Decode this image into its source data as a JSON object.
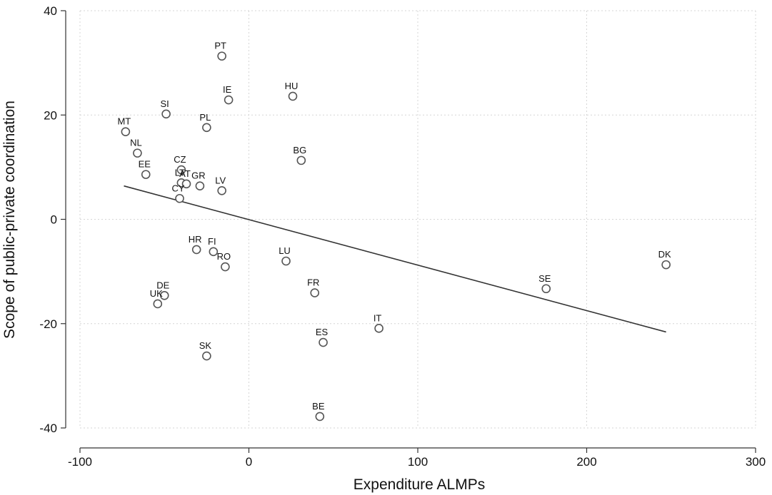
{
  "chart_data": {
    "type": "scatter",
    "xlabel": "Expenditure ALMPs",
    "ylabel": "Scope of public-private coordination",
    "xlim": [
      -100,
      300
    ],
    "ylim": [
      -40,
      40
    ],
    "xticks": [
      -100,
      0,
      100,
      200,
      300
    ],
    "yticks": [
      -40,
      -20,
      0,
      20,
      40
    ],
    "grid": true,
    "points": [
      {
        "label": "PT",
        "x": -16,
        "y": 31.3
      },
      {
        "label": "HU",
        "x": 26,
        "y": 23.6
      },
      {
        "label": "IE",
        "x": -12,
        "y": 22.9
      },
      {
        "label": "SI",
        "x": -49,
        "y": 20.2
      },
      {
        "label": "PL",
        "x": -25,
        "y": 17.6
      },
      {
        "label": "MT",
        "x": -73,
        "y": 16.8
      },
      {
        "label": "NL",
        "x": -66,
        "y": 12.7
      },
      {
        "label": "BG",
        "x": 31,
        "y": 11.3
      },
      {
        "label": "CZ",
        "x": -40,
        "y": 9.5
      },
      {
        "label": "EE",
        "x": -61,
        "y": 8.6
      },
      {
        "label": "LT",
        "x": -40,
        "y": 7.0
      },
      {
        "label": "AT",
        "x": -37,
        "y": 6.8
      },
      {
        "label": "GR",
        "x": -29,
        "y": 6.4
      },
      {
        "label": "LV",
        "x": -16,
        "y": 5.5
      },
      {
        "label": "CY",
        "x": -41,
        "y": 4.0
      },
      {
        "label": "HR",
        "x": -31,
        "y": -5.8
      },
      {
        "label": "FI",
        "x": -21,
        "y": -6.2
      },
      {
        "label": "RO",
        "x": -14,
        "y": -9.1
      },
      {
        "label": "LU",
        "x": 22,
        "y": -8.0
      },
      {
        "label": "DK",
        "x": 247,
        "y": -8.7
      },
      {
        "label": "SE",
        "x": 176,
        "y": -13.3
      },
      {
        "label": "FR",
        "x": 39,
        "y": -14.1
      },
      {
        "label": "DE",
        "x": -50,
        "y": -14.6
      },
      {
        "label": "UK",
        "x": -54,
        "y": -16.2
      },
      {
        "label": "IT",
        "x": 77,
        "y": -20.9
      },
      {
        "label": "ES",
        "x": 44,
        "y": -23.6
      },
      {
        "label": "SK",
        "x": -25,
        "y": -26.2
      },
      {
        "label": "BE",
        "x": 42,
        "y": -37.8
      }
    ],
    "fit_line": {
      "x": [
        -74,
        247
      ],
      "y": [
        6.4,
        -21.6
      ]
    }
  }
}
